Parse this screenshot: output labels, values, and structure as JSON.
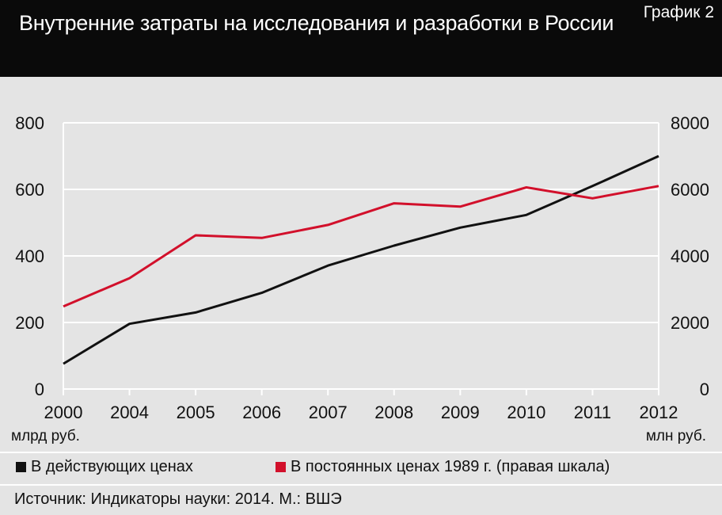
{
  "header": {
    "title": "Внутренние затраты на исследования и разработки в России",
    "badge": "График 2"
  },
  "units": {
    "left": "млрд руб.",
    "right": "млн руб."
  },
  "legend": [
    {
      "label": "В действующих ценах",
      "color": "#111111"
    },
    {
      "label": "В постоянных ценах 1989 г. (правая шкала)",
      "color": "#d2102b"
    }
  ],
  "source": "Источник: Индикаторы науки: 2014. М.: ВШЭ",
  "colors": {
    "background": "#e4e4e4",
    "header": "#0a0a0a",
    "grid": "#ffffff",
    "current": "#111111",
    "constant": "#d2102b"
  },
  "chart_data": {
    "type": "line",
    "categories": [
      "2000",
      "2004",
      "2005",
      "2006",
      "2007",
      "2008",
      "2009",
      "2010",
      "2011",
      "2012"
    ],
    "series": [
      {
        "name": "В действующих ценах",
        "axis": "left",
        "values": [
          [
            2000,
            76
          ],
          [
            2004,
            196
          ],
          [
            2005,
            230
          ],
          [
            2006,
            289
          ],
          [
            2007,
            371
          ],
          [
            2008,
            431
          ],
          [
            2009,
            485
          ],
          [
            2010,
            523
          ],
          [
            2011,
            610
          ],
          [
            2012,
            700
          ]
        ]
      },
      {
        "name": "В постоянных ценах 1989 г. (правая шкала)",
        "axis": "right",
        "values": [
          [
            2000,
            2480
          ],
          [
            2004,
            3330
          ],
          [
            2005,
            4620
          ],
          [
            2006,
            4540
          ],
          [
            2007,
            4930
          ],
          [
            2008,
            5580
          ],
          [
            2009,
            5480
          ],
          [
            2010,
            6060
          ],
          [
            2011,
            5730
          ],
          [
            2012,
            6100
          ]
        ]
      }
    ],
    "y_left": {
      "ylim": [
        0,
        800
      ],
      "ticks": [
        0,
        200,
        400,
        600,
        800
      ]
    },
    "y_right": {
      "ylim": [
        0,
        8000
      ],
      "ticks": [
        0,
        2000,
        4000,
        6000,
        8000
      ]
    },
    "grid": true,
    "legend_position": "bottom"
  }
}
